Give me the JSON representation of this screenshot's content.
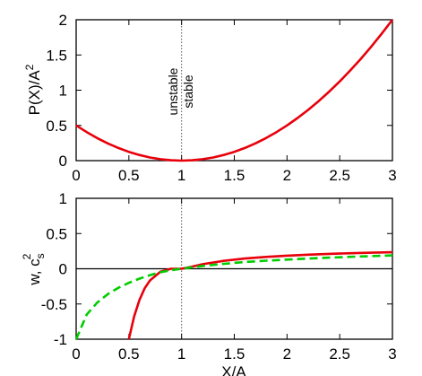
{
  "chart_data": [
    {
      "type": "line",
      "xlim": [
        0,
        3
      ],
      "ylim": [
        0,
        2
      ],
      "x_ticks": [
        "0",
        "0.5",
        "1",
        "1.5",
        "2",
        "2.5",
        "3"
      ],
      "y_ticks": [
        "0",
        "0.5",
        "1",
        "1.5",
        "2"
      ],
      "ylabel": {
        "main": "P(X)/A",
        "superscript": "2"
      },
      "annotations": [
        "unstable",
        "stable"
      ],
      "vline_x": 1,
      "series": [
        {
          "color": "#e8000b",
          "style": "solid",
          "x": [
            0,
            0.1,
            0.2,
            0.3,
            0.4,
            0.5,
            0.6,
            0.7,
            0.8,
            0.9,
            1.0,
            1.1,
            1.2,
            1.3,
            1.4,
            1.5,
            1.6,
            1.7,
            1.8,
            1.9,
            2.0,
            2.1,
            2.2,
            2.3,
            2.4,
            2.5,
            2.6,
            2.7,
            2.8,
            2.9,
            3.0
          ],
          "y": [
            0.5,
            0.405,
            0.32,
            0.245,
            0.18,
            0.125,
            0.08,
            0.045,
            0.02,
            0.005,
            0.0,
            0.005,
            0.02,
            0.045,
            0.08,
            0.125,
            0.18,
            0.245,
            0.32,
            0.405,
            0.5,
            0.605,
            0.72,
            0.845,
            0.98,
            1.125,
            1.28,
            1.445,
            1.62,
            1.805,
            2.0
          ]
        }
      ]
    },
    {
      "type": "line",
      "xlim": [
        0,
        3
      ],
      "ylim": [
        -1,
        1
      ],
      "x_ticks": [
        "0",
        "0.5",
        "1",
        "1.5",
        "2",
        "2.5",
        "3"
      ],
      "y_ticks": [
        "-1",
        "-0.5",
        "0",
        "0.5",
        "1"
      ],
      "xlabel": "X/A",
      "ylabel": {
        "main": "w, c",
        "subscript": "s",
        "superscript": "2"
      },
      "hline_y": 0,
      "vline_x": 1,
      "series": [
        {
          "color": "#e8000b",
          "style": "solid",
          "x": [
            0.5,
            0.55,
            0.6,
            0.65,
            0.7,
            0.8,
            0.9,
            1.0,
            1.1,
            1.2,
            1.4,
            1.6,
            1.8,
            2.0,
            2.2,
            2.4,
            2.6,
            2.8,
            3.0
          ],
          "y": [
            -1.0,
            -0.678,
            -0.444,
            -0.277,
            -0.166,
            -0.042,
            -0.0005,
            0.0,
            0.031,
            0.065,
            0.112,
            0.145,
            0.168,
            0.186,
            0.2,
            0.211,
            0.22,
            0.228,
            0.235
          ]
        },
        {
          "color": "#00cc00",
          "style": "dashed",
          "x": [
            0,
            0.1,
            0.2,
            0.3,
            0.4,
            0.5,
            0.6,
            0.7,
            0.8,
            0.9,
            1.0,
            1.2,
            1.4,
            1.6,
            1.8,
            2.0,
            2.2,
            2.4,
            2.6,
            2.8,
            3.0
          ],
          "y": [
            -1.0,
            -0.65,
            -0.48,
            -0.36,
            -0.27,
            -0.2,
            -0.14,
            -0.09,
            -0.05,
            -0.02,
            0.0,
            0.04,
            0.07,
            0.095,
            0.115,
            0.13,
            0.145,
            0.158,
            0.17,
            0.18,
            0.19
          ]
        }
      ]
    }
  ]
}
